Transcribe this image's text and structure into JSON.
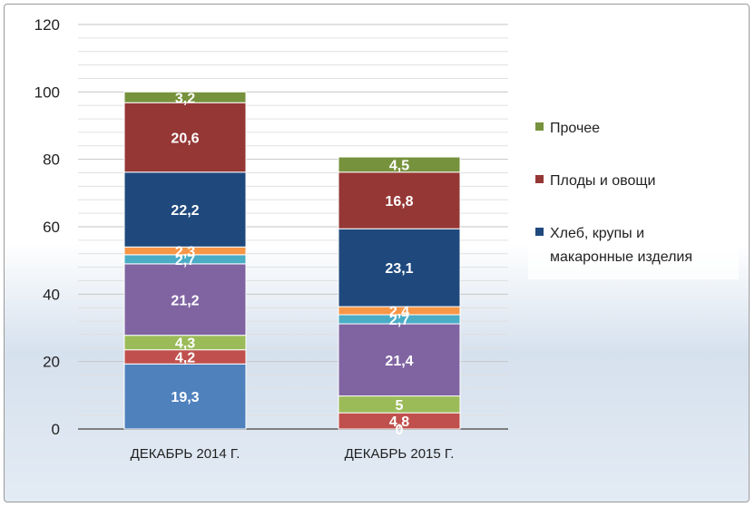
{
  "chart_data": {
    "type": "bar",
    "stacked": true,
    "categories": [
      "ДЕКАБРЬ 2014 Г.",
      "ДЕКАБРЬ 2015 Г."
    ],
    "ylim": [
      0,
      120
    ],
    "yticks": [
      0,
      20,
      40,
      60,
      80,
      100,
      120
    ],
    "grid": true,
    "legend_position": "right",
    "series": [
      {
        "color": "#4f81bd",
        "values": [
          19.3,
          0
        ],
        "labels": [
          "19,3",
          "0"
        ]
      },
      {
        "color": "#c0504d",
        "values": [
          4.2,
          4.8
        ],
        "labels": [
          "4,2",
          "4,8"
        ]
      },
      {
        "color": "#9bbb59",
        "values": [
          4.3,
          5
        ],
        "labels": [
          "4,3",
          "5"
        ]
      },
      {
        "color": "#8064a2",
        "values": [
          21.2,
          21.4
        ],
        "labels": [
          "21,2",
          "21,4"
        ]
      },
      {
        "color": "#4bacc6",
        "values": [
          2.7,
          2.7
        ],
        "labels": [
          "2,7",
          "2,7"
        ]
      },
      {
        "color": "#f79646",
        "values": [
          2.3,
          2.4
        ],
        "labels": [
          "2,3",
          "2,4"
        ]
      },
      {
        "name": "Хлеб, крупы и макаронные изделия",
        "color": "#1f497d",
        "values": [
          22.2,
          23.1
        ],
        "labels": [
          "22,2",
          "23,1"
        ]
      },
      {
        "name": "Плоды и овощи",
        "color": "#953735",
        "values": [
          20.6,
          16.8
        ],
        "labels": [
          "20,6",
          "16,8"
        ]
      },
      {
        "name": "Прочее",
        "color": "#76923c",
        "values": [
          3.2,
          4.5
        ],
        "labels": [
          "3,2",
          "4,5"
        ]
      }
    ],
    "legend": [
      {
        "name": "Прочее",
        "color": "#76923c",
        "lines": [
          "Прочее"
        ]
      },
      {
        "name": "Плоды и овощи",
        "color": "#953735",
        "lines": [
          "Плоды и овощи"
        ]
      },
      {
        "name": "Хлеб, крупы и макаронные изделия",
        "color": "#1f497d",
        "lines": [
          "Хлеб, крупы и",
          "макаронные изделия"
        ]
      }
    ]
  }
}
